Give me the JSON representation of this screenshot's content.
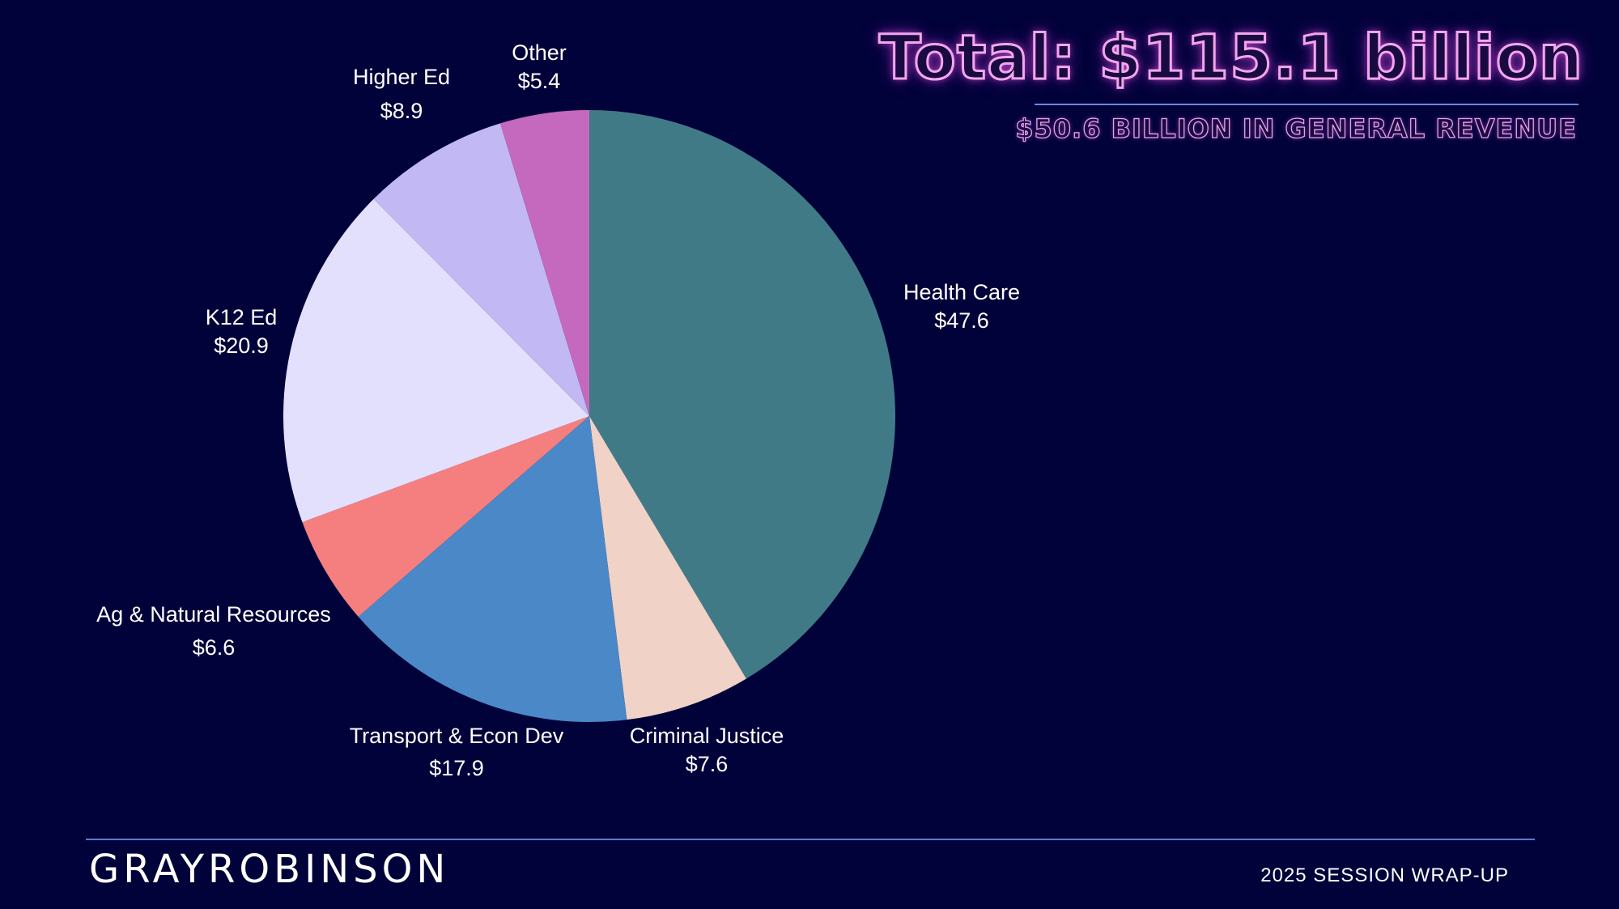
{
  "header": {
    "title": "Total: $115.1 billion",
    "subtitle": "$50.6 BILLION IN GENERAL REVENUE"
  },
  "footer": {
    "brand": "GRAYROBINSON",
    "session": "2025 SESSION WRAP-UP"
  },
  "chart_data": {
    "type": "pie",
    "categories": [
      "Health Care",
      "Criminal Justice",
      "Transport & Econ Dev",
      "Ag & Natural Resources",
      "K12 Ed",
      "Higher Ed",
      "Other"
    ],
    "values": [
      47.6,
      7.6,
      17.9,
      6.6,
      20.9,
      8.9,
      5.4
    ],
    "value_labels": [
      "$47.6",
      "$7.6",
      "$17.9",
      "$6.6",
      "$20.9",
      "$8.9",
      "$5.4"
    ],
    "colors": [
      "#417a87",
      "#f0d2c6",
      "#4a88c7",
      "#f57f7f",
      "#e3e0fe",
      "#c2b8f3",
      "#c469bd"
    ],
    "start": "12 o'clock, clockwise",
    "legend": "none; labels beside slices",
    "unit": "billion USD"
  }
}
